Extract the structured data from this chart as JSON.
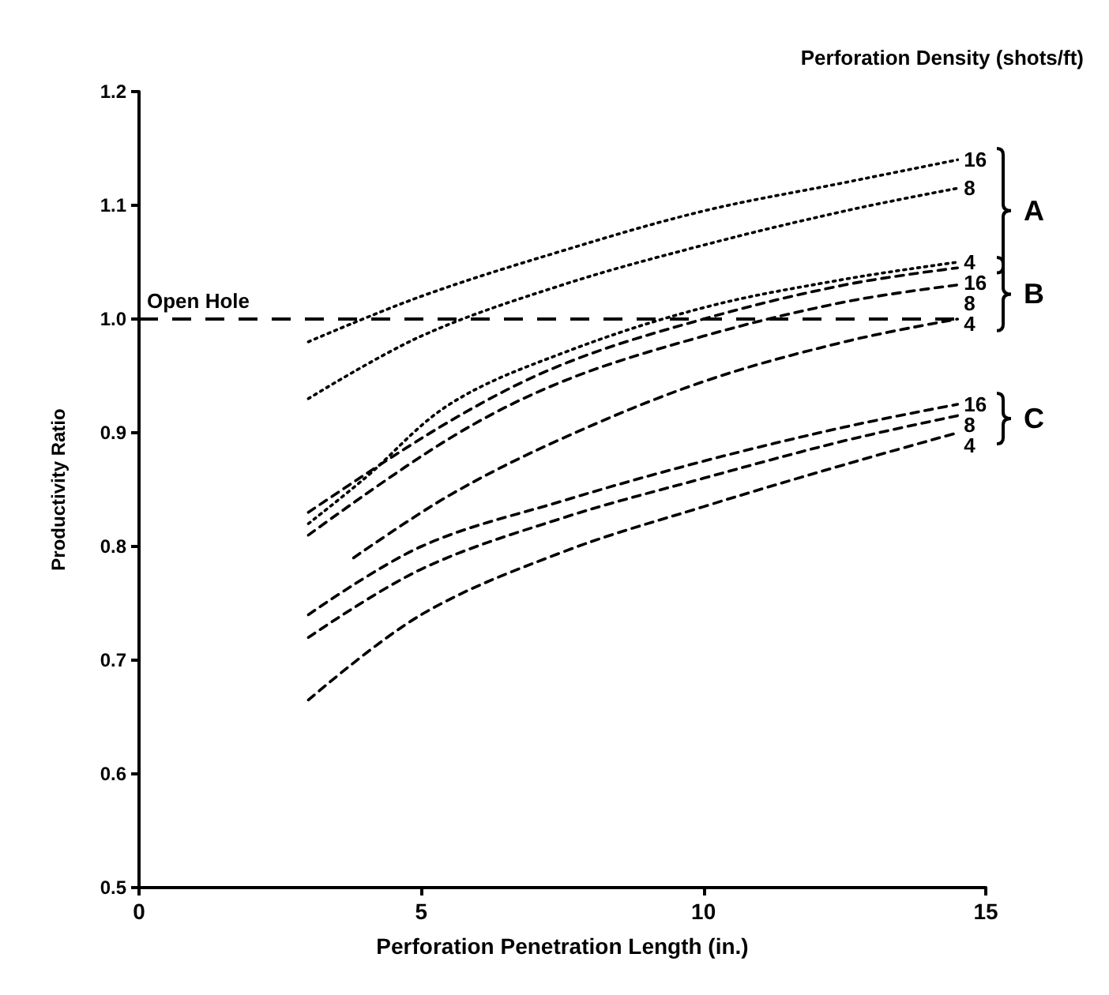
{
  "chart_data": {
    "type": "line",
    "xlabel": "Perforation Penetration Length (in.)",
    "ylabel": "Productivity Ratio",
    "legend_title": "Perforation Density (shots/ft)",
    "xlim": [
      0,
      15
    ],
    "xticks": [
      0,
      5,
      10,
      15
    ],
    "ylim": [
      0.5,
      1.2
    ],
    "yticks": [
      0.5,
      0.6,
      0.7,
      0.8,
      0.9,
      {
        "value": 1.0,
        "label": "1.0"
      },
      1.1,
      1.2
    ],
    "grid": false,
    "legend": false,
    "marker": "none",
    "series": [
      {
        "name": "16",
        "color": "#000000",
        "line_style": "dotted",
        "x": [
          3,
          5,
          7.5,
          10,
          12.5,
          14.5
        ],
        "values": [
          0.98,
          1.02,
          1.06,
          1.095,
          1.12,
          1.14
        ]
      },
      {
        "name": "8",
        "color": "#000000",
        "line_style": "dotted",
        "x": [
          3,
          5,
          7.5,
          10,
          12.5,
          14.5
        ],
        "values": [
          0.93,
          0.985,
          1.03,
          1.065,
          1.095,
          1.115
        ]
      },
      {
        "name": "4",
        "color": "#000000",
        "line_style": "dotted",
        "x": [
          3,
          4,
          5.5,
          7.5,
          10,
          12.5,
          14.5
        ],
        "values": [
          0.82,
          0.86,
          0.925,
          0.97,
          1.01,
          1.035,
          1.05
        ]
      },
      {
        "name": "16",
        "color": "#000000",
        "line_style": "dashed",
        "x": [
          3,
          5.5,
          7.5,
          10,
          12.5,
          14.5
        ],
        "values": [
          0.83,
          0.91,
          0.96,
          1.0,
          1.03,
          1.045
        ]
      },
      {
        "name": "8",
        "color": "#000000",
        "line_style": "dashed",
        "x": [
          3,
          5.5,
          7.5,
          10,
          12.5,
          14.5
        ],
        "values": [
          0.81,
          0.895,
          0.945,
          0.985,
          1.015,
          1.03
        ]
      },
      {
        "name": "4",
        "color": "#000000",
        "line_style": "dashed",
        "x": [
          3.8,
          5.5,
          7.5,
          10,
          12.5,
          14.5
        ],
        "values": [
          0.79,
          0.845,
          0.895,
          0.945,
          0.98,
          1.0
        ]
      },
      {
        "name": "16",
        "color": "#000000",
        "line_style": "dashed",
        "x": [
          3,
          5,
          7.5,
          10,
          12.5,
          14.5
        ],
        "values": [
          0.74,
          0.8,
          0.84,
          0.875,
          0.905,
          0.925
        ]
      },
      {
        "name": "8",
        "color": "#000000",
        "line_style": "dashed",
        "x": [
          3,
          5,
          7.5,
          10,
          12.5,
          14.5
        ],
        "values": [
          0.72,
          0.78,
          0.825,
          0.86,
          0.893,
          0.915
        ]
      },
      {
        "name": "4",
        "color": "#000000",
        "line_style": "dashed",
        "x": [
          3,
          5,
          7.5,
          10,
          12.5,
          14.5
        ],
        "values": [
          0.665,
          0.74,
          0.795,
          0.835,
          0.872,
          0.9
        ]
      }
    ],
    "ref_lines": [
      {
        "axis": "y",
        "value": 1.0,
        "label": "Open Hole",
        "color": "#000000",
        "line_style": "dashed"
      }
    ],
    "annotations": [
      "A",
      "B",
      "C"
    ]
  }
}
